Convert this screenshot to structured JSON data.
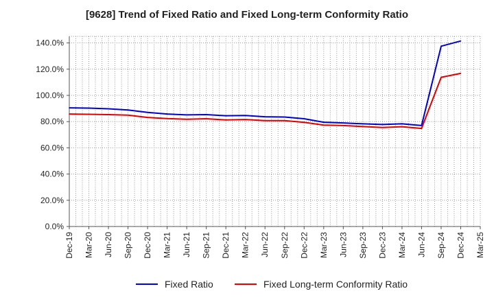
{
  "chart_data": {
    "type": "line",
    "title": "[9628]  Trend of Fixed Ratio and Fixed Long-term Conformity Ratio",
    "xlabel": "",
    "ylabel": "",
    "ylim": [
      0,
      145
    ],
    "yticks": [
      0,
      20,
      40,
      60,
      80,
      100,
      120,
      140
    ],
    "ytick_labels": [
      "0.0%",
      "20.0%",
      "40.0%",
      "60.0%",
      "80.0%",
      "100.0%",
      "120.0%",
      "140.0%"
    ],
    "categories": [
      "Dec-19",
      "Mar-20",
      "Jun-20",
      "Sep-20",
      "Dec-20",
      "Mar-21",
      "Jun-21",
      "Sep-21",
      "Dec-21",
      "Mar-22",
      "Jun-22",
      "Sep-22",
      "Dec-22",
      "Mar-23",
      "Jun-23",
      "Sep-23",
      "Dec-23",
      "Mar-24",
      "Jun-24",
      "Sep-24",
      "Dec-24",
      "Mar-25"
    ],
    "grid": true,
    "legend_position": "bottom",
    "series": [
      {
        "name": "Fixed Ratio",
        "color": "#0000cc",
        "values": [
          90.5,
          90.3,
          89.8,
          88.9,
          87.0,
          85.8,
          85.1,
          85.3,
          84.5,
          84.7,
          83.7,
          83.5,
          82.2,
          79.5,
          79.0,
          78.3,
          77.8,
          78.3,
          77.0,
          137.5,
          141.5,
          null
        ]
      },
      {
        "name": "Fixed Long-term Conformity Ratio",
        "color": "#dd0000",
        "values": [
          85.8,
          85.6,
          85.3,
          84.9,
          83.2,
          82.3,
          81.8,
          82.2,
          81.3,
          81.6,
          80.7,
          80.7,
          79.4,
          77.3,
          77.0,
          76.2,
          75.5,
          76.1,
          74.8,
          113.8,
          116.8,
          null
        ]
      }
    ]
  }
}
